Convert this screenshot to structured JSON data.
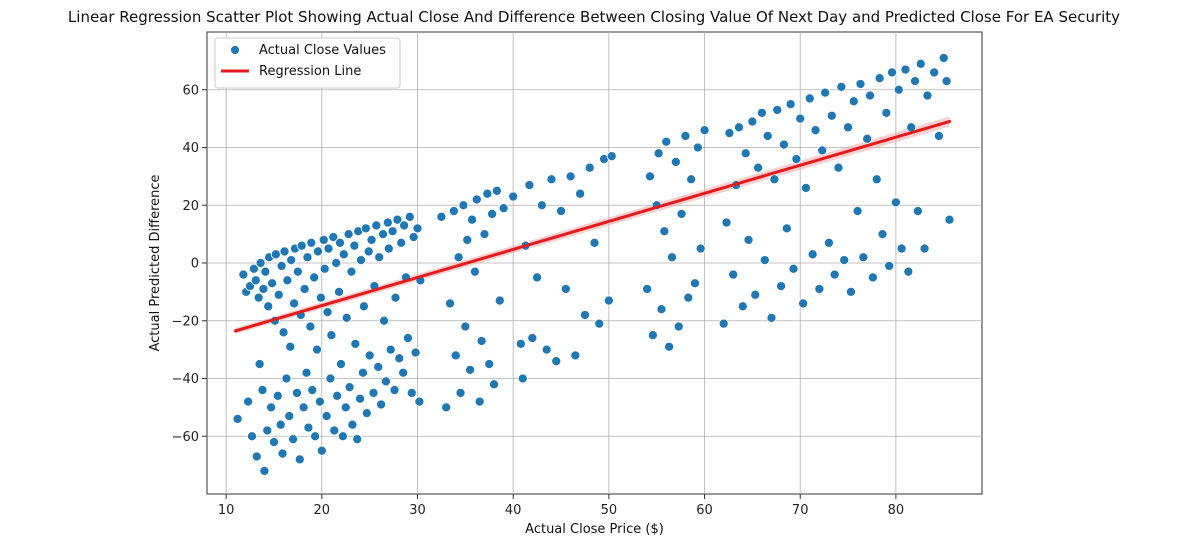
{
  "chart_data": {
    "type": "scatter",
    "title": "Linear Regression Scatter Plot Showing Actual Close And Difference Between Closing Value Of Next Day and Predicted Close For EA Security",
    "xlabel": "Actual Close Price ($)",
    "ylabel": "Actual Predicted Difference",
    "xlim": [
      8,
      89
    ],
    "ylim": [
      -80,
      80
    ],
    "xticks": [
      10,
      20,
      30,
      40,
      50,
      60,
      70,
      80
    ],
    "yticks": [
      -60,
      -40,
      -20,
      0,
      20,
      40,
      60
    ],
    "grid": true,
    "legend": {
      "placement": "top-left"
    },
    "colors": {
      "points": "#1f77b4",
      "point_edge": "#ffffff",
      "line": "#e41a1c",
      "band": "#f4a0a0",
      "grid": "#b0b0b0"
    },
    "series": [
      {
        "name": "Actual Close Values",
        "kind": "scatter",
        "points": [
          [
            11.2,
            -54
          ],
          [
            11.8,
            -4
          ],
          [
            12.1,
            -10
          ],
          [
            12.3,
            -48
          ],
          [
            12.5,
            -8
          ],
          [
            12.7,
            -60
          ],
          [
            12.9,
            -2
          ],
          [
            13.1,
            -6
          ],
          [
            13.2,
            -67
          ],
          [
            13.4,
            -12
          ],
          [
            13.5,
            -35
          ],
          [
            13.6,
            0
          ],
          [
            13.8,
            -44
          ],
          [
            13.9,
            -9
          ],
          [
            14.0,
            -72
          ],
          [
            14.1,
            -3
          ],
          [
            14.3,
            -58
          ],
          [
            14.4,
            -15
          ],
          [
            14.5,
            2
          ],
          [
            14.7,
            -50
          ],
          [
            14.8,
            -7
          ],
          [
            15.0,
            -62
          ],
          [
            15.1,
            -20
          ],
          [
            15.2,
            3
          ],
          [
            15.4,
            -46
          ],
          [
            15.5,
            -11
          ],
          [
            15.7,
            -56
          ],
          [
            15.8,
            -1
          ],
          [
            15.9,
            -66
          ],
          [
            16.0,
            -24
          ],
          [
            16.1,
            4
          ],
          [
            16.3,
            -40
          ],
          [
            16.4,
            -6
          ],
          [
            16.6,
            -53
          ],
          [
            16.7,
            -29
          ],
          [
            16.8,
            1
          ],
          [
            17.0,
            -61
          ],
          [
            17.1,
            -14
          ],
          [
            17.2,
            5
          ],
          [
            17.4,
            -45
          ],
          [
            17.5,
            -3
          ],
          [
            17.7,
            -68
          ],
          [
            17.8,
            -18
          ],
          [
            17.9,
            6
          ],
          [
            18.1,
            -50
          ],
          [
            18.2,
            -9
          ],
          [
            18.4,
            -38
          ],
          [
            18.5,
            2
          ],
          [
            18.6,
            -57
          ],
          [
            18.8,
            -22
          ],
          [
            18.9,
            7
          ],
          [
            19.0,
            -44
          ],
          [
            19.2,
            -5
          ],
          [
            19.3,
            -60
          ],
          [
            19.5,
            -30
          ],
          [
            19.6,
            4
          ],
          [
            19.8,
            -48
          ],
          [
            19.9,
            -12
          ],
          [
            20.0,
            -65
          ],
          [
            20.2,
            8
          ],
          [
            20.3,
            -2
          ],
          [
            20.5,
            -53
          ],
          [
            20.6,
            -17
          ],
          [
            20.7,
            5
          ],
          [
            20.9,
            -40
          ],
          [
            21.0,
            -25
          ],
          [
            21.2,
            9
          ],
          [
            21.3,
            -58
          ],
          [
            21.5,
            0
          ],
          [
            21.6,
            -46
          ],
          [
            21.8,
            -10
          ],
          [
            21.9,
            7
          ],
          [
            22.0,
            -35
          ],
          [
            22.2,
            -60
          ],
          [
            22.3,
            3
          ],
          [
            22.5,
            -50
          ],
          [
            22.6,
            -19
          ],
          [
            22.8,
            10
          ],
          [
            22.9,
            -43
          ],
          [
            23.1,
            -3
          ],
          [
            23.2,
            -56
          ],
          [
            23.4,
            6
          ],
          [
            23.5,
            -28
          ],
          [
            23.7,
            -61
          ],
          [
            23.8,
            11
          ],
          [
            24.0,
            -47
          ],
          [
            24.1,
            1
          ],
          [
            24.3,
            -38
          ],
          [
            24.4,
            -15
          ],
          [
            24.6,
            12
          ],
          [
            24.7,
            -52
          ],
          [
            24.9,
            4
          ],
          [
            25.0,
            -32
          ],
          [
            25.2,
            8
          ],
          [
            25.4,
            -45
          ],
          [
            25.5,
            -8
          ],
          [
            25.7,
            13
          ],
          [
            25.9,
            -36
          ],
          [
            26.0,
            2
          ],
          [
            26.2,
            -49
          ],
          [
            26.4,
            10
          ],
          [
            26.5,
            -20
          ],
          [
            26.7,
            -41
          ],
          [
            26.9,
            14
          ],
          [
            27.0,
            5
          ],
          [
            27.2,
            -30
          ],
          [
            27.4,
            11
          ],
          [
            27.6,
            -44
          ],
          [
            27.7,
            -12
          ],
          [
            27.9,
            15
          ],
          [
            28.1,
            -33
          ],
          [
            28.3,
            7
          ],
          [
            28.5,
            -38
          ],
          [
            28.6,
            13
          ],
          [
            28.8,
            -5
          ],
          [
            29.0,
            -26
          ],
          [
            29.2,
            16
          ],
          [
            29.4,
            -45
          ],
          [
            29.6,
            9
          ],
          [
            29.8,
            -31
          ],
          [
            30.0,
            12
          ],
          [
            30.2,
            -48
          ],
          [
            30.3,
            -6
          ],
          [
            32.5,
            16
          ],
          [
            33.0,
            -50
          ],
          [
            33.4,
            -14
          ],
          [
            33.8,
            18
          ],
          [
            34.0,
            -32
          ],
          [
            34.3,
            2
          ],
          [
            34.5,
            -45
          ],
          [
            34.8,
            20
          ],
          [
            35.0,
            -22
          ],
          [
            35.2,
            8
          ],
          [
            35.5,
            -37
          ],
          [
            35.7,
            15
          ],
          [
            36.0,
            -3
          ],
          [
            36.2,
            22
          ],
          [
            36.5,
            -48
          ],
          [
            36.7,
            -27
          ],
          [
            37.0,
            10
          ],
          [
            37.3,
            24
          ],
          [
            37.5,
            -35
          ],
          [
            37.8,
            17
          ],
          [
            38.0,
            -42
          ],
          [
            38.3,
            25
          ],
          [
            38.6,
            -13
          ],
          [
            39.0,
            19
          ],
          [
            40.0,
            23
          ],
          [
            40.8,
            -28
          ],
          [
            41.0,
            -40
          ],
          [
            41.3,
            6
          ],
          [
            41.7,
            27
          ],
          [
            42.0,
            -26
          ],
          [
            42.5,
            -5
          ],
          [
            43.0,
            20
          ],
          [
            43.5,
            -30
          ],
          [
            44.0,
            29
          ],
          [
            44.5,
            -34
          ],
          [
            45.0,
            18
          ],
          [
            45.5,
            -9
          ],
          [
            46.0,
            30
          ],
          [
            46.5,
            -32
          ],
          [
            47.0,
            24
          ],
          [
            47.5,
            -18
          ],
          [
            48.0,
            33
          ],
          [
            48.5,
            7
          ],
          [
            49.0,
            -21
          ],
          [
            49.5,
            36
          ],
          [
            50.0,
            -13
          ],
          [
            50.3,
            37
          ],
          [
            54.0,
            -9
          ],
          [
            54.3,
            30
          ],
          [
            54.6,
            -25
          ],
          [
            55.0,
            20
          ],
          [
            55.2,
            38
          ],
          [
            55.5,
            -16
          ],
          [
            55.8,
            11
          ],
          [
            56.0,
            42
          ],
          [
            56.3,
            -29
          ],
          [
            56.6,
            2
          ],
          [
            57.0,
            35
          ],
          [
            57.3,
            -22
          ],
          [
            57.6,
            17
          ],
          [
            58.0,
            44
          ],
          [
            58.3,
            -12
          ],
          [
            58.6,
            29
          ],
          [
            59.0,
            -7
          ],
          [
            59.3,
            40
          ],
          [
            59.6,
            5
          ],
          [
            60.0,
            46
          ],
          [
            62.0,
            -21
          ],
          [
            62.3,
            14
          ],
          [
            62.6,
            45
          ],
          [
            63.0,
            -4
          ],
          [
            63.3,
            27
          ],
          [
            63.6,
            47
          ],
          [
            64.0,
            -15
          ],
          [
            64.3,
            38
          ],
          [
            64.6,
            8
          ],
          [
            65.0,
            49
          ],
          [
            65.3,
            -11
          ],
          [
            65.6,
            33
          ],
          [
            66.0,
            52
          ],
          [
            66.3,
            1
          ],
          [
            66.6,
            44
          ],
          [
            67.0,
            -19
          ],
          [
            67.3,
            29
          ],
          [
            67.6,
            53
          ],
          [
            68.0,
            -8
          ],
          [
            68.3,
            41
          ],
          [
            68.6,
            12
          ],
          [
            69.0,
            55
          ],
          [
            69.3,
            -2
          ],
          [
            69.6,
            36
          ],
          [
            70.0,
            50
          ],
          [
            70.3,
            -14
          ],
          [
            70.6,
            26
          ],
          [
            71.0,
            57
          ],
          [
            71.3,
            3
          ],
          [
            71.6,
            46
          ],
          [
            72.0,
            -9
          ],
          [
            72.3,
            39
          ],
          [
            72.6,
            59
          ],
          [
            73.0,
            7
          ],
          [
            73.3,
            51
          ],
          [
            73.6,
            -4
          ],
          [
            74.0,
            33
          ],
          [
            74.3,
            61
          ],
          [
            74.6,
            1
          ],
          [
            75.0,
            47
          ],
          [
            75.3,
            -10
          ],
          [
            75.6,
            56
          ],
          [
            76.0,
            18
          ],
          [
            76.3,
            62
          ],
          [
            76.6,
            2
          ],
          [
            77.0,
            43
          ],
          [
            77.3,
            58
          ],
          [
            77.6,
            -5
          ],
          [
            78.0,
            29
          ],
          [
            78.3,
            64
          ],
          [
            78.6,
            10
          ],
          [
            79.0,
            52
          ],
          [
            79.3,
            -1
          ],
          [
            79.6,
            66
          ],
          [
            80.0,
            21
          ],
          [
            80.3,
            60
          ],
          [
            80.6,
            5
          ],
          [
            81.0,
            67
          ],
          [
            81.3,
            -3
          ],
          [
            81.6,
            47
          ],
          [
            82.0,
            63
          ],
          [
            82.3,
            18
          ],
          [
            82.6,
            69
          ],
          [
            83.0,
            5
          ],
          [
            83.3,
            58
          ],
          [
            84.0,
            66
          ],
          [
            84.5,
            44
          ],
          [
            85.0,
            71
          ],
          [
            85.3,
            63
          ],
          [
            85.6,
            15
          ]
        ]
      },
      {
        "name": "Regression Line",
        "kind": "line",
        "x": [
          11,
          85.6
        ],
        "y": [
          -23.5,
          49
        ]
      }
    ]
  }
}
